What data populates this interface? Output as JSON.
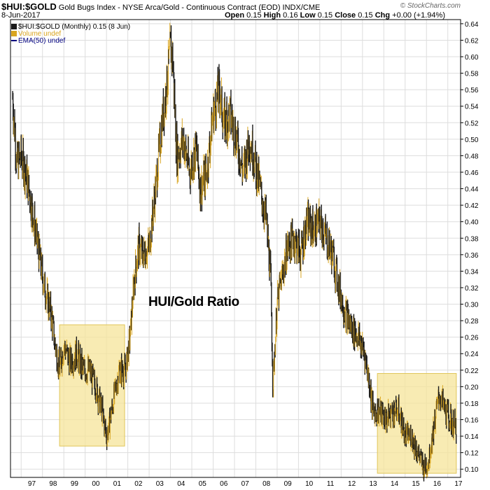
{
  "header": {
    "symbol": "$HUI:$GOLD",
    "description": "Gold Bugs Index - NYSE Arca/Gold - Continuous Contract (EOD)  INDX/CME",
    "credit": "© StockCharts.com",
    "date": "8-Jun-2017",
    "open_label": "Open",
    "open": "0.15",
    "high_label": "High",
    "high": "0.16",
    "low_label": "Low",
    "low": "0.15",
    "close_label": "Close",
    "close": "0.15",
    "chg_label": "Chg",
    "chg": "+0.00 (+1.94%)"
  },
  "legend": {
    "main": "$HUI:$GOLD (Monthly) 0.15 (8 Jun)",
    "volume": "Volume undef",
    "ema": "EMA(50) undef"
  },
  "annotation": "HUI/Gold Ratio",
  "colors": {
    "bar_dark": "#1a1a1a",
    "bar_gold": "#d9a520",
    "highlight_fill": "#f5e49a",
    "highlight_stroke": "#e0c65a",
    "grid": "#dddddd",
    "ema": "#000080"
  },
  "chart_data": {
    "type": "line",
    "title": "HUI/Gold Ratio",
    "x_ticks": [
      "97",
      "98",
      "99",
      "00",
      "01",
      "02",
      "03",
      "04",
      "05",
      "06",
      "07",
      "08",
      "09",
      "10",
      "11",
      "12",
      "13",
      "14",
      "15",
      "16",
      "17"
    ],
    "x_tick_years": [
      1997,
      1998,
      1999,
      2000,
      2001,
      2002,
      2003,
      2004,
      2005,
      2006,
      2007,
      2008,
      2009,
      2010,
      2011,
      2012,
      2013,
      2014,
      2015,
      2016,
      2017
    ],
    "y_ticks": [
      "0.10",
      "0.12",
      "0.14",
      "0.16",
      "0.18",
      "0.20",
      "0.22",
      "0.24",
      "0.26",
      "0.28",
      "0.30",
      "0.32",
      "0.34",
      "0.36",
      "0.38",
      "0.40",
      "0.42",
      "0.44",
      "0.46",
      "0.48",
      "0.50",
      "0.52",
      "0.54",
      "0.56",
      "0.58",
      "0.60",
      "0.62",
      "0.64"
    ],
    "ylim": [
      0.09,
      0.645
    ],
    "xlim": [
      1996.5,
      2017.6
    ],
    "series": [
      {
        "x": [
          1996.6,
          1996.8,
          1997.0,
          1997.3,
          1997.6,
          1997.9,
          1998.1,
          1998.4,
          1998.6,
          1998.8,
          1999.0,
          1999.3,
          1999.6,
          1999.9,
          2000.2,
          2000.5,
          2000.8,
          2001.0,
          2001.1,
          2001.3,
          2001.6,
          2001.9,
          2002.1,
          2002.3,
          2002.5,
          2002.7,
          2003.0,
          2003.3,
          2003.6,
          2003.8,
          2004.0,
          2004.1,
          2004.3,
          2004.6,
          2004.9,
          2005.2,
          2005.4,
          2005.7,
          2006.0,
          2006.3,
          2006.5,
          2006.8,
          2007.1,
          2007.4,
          2007.7,
          2007.9,
          2008.2,
          2008.5,
          2008.7,
          2008.8,
          2009.0,
          2009.2,
          2009.5,
          2009.8,
          2010.1,
          2010.4,
          2010.7,
          2011.0,
          2011.3,
          2011.6,
          2011.9,
          2012.2,
          2012.5,
          2012.8,
          2013.1,
          2013.3,
          2013.5,
          2013.8,
          2014.1,
          2014.4,
          2014.7,
          2015.0,
          2015.3,
          2015.6,
          2015.9,
          2016.1,
          2016.4,
          2016.6,
          2016.9,
          2017.1,
          2017.4
        ],
        "values": [
          0.55,
          0.47,
          0.48,
          0.45,
          0.4,
          0.35,
          0.32,
          0.29,
          0.25,
          0.22,
          0.25,
          0.23,
          0.24,
          0.22,
          0.22,
          0.2,
          0.17,
          0.14,
          0.15,
          0.18,
          0.22,
          0.22,
          0.26,
          0.33,
          0.37,
          0.36,
          0.37,
          0.44,
          0.52,
          0.56,
          0.61,
          0.6,
          0.48,
          0.5,
          0.46,
          0.49,
          0.44,
          0.46,
          0.53,
          0.56,
          0.52,
          0.53,
          0.5,
          0.46,
          0.5,
          0.48,
          0.44,
          0.4,
          0.33,
          0.2,
          0.3,
          0.33,
          0.37,
          0.38,
          0.36,
          0.4,
          0.39,
          0.4,
          0.38,
          0.36,
          0.32,
          0.29,
          0.27,
          0.26,
          0.24,
          0.21,
          0.17,
          0.17,
          0.16,
          0.17,
          0.17,
          0.14,
          0.14,
          0.12,
          0.1,
          0.11,
          0.16,
          0.19,
          0.17,
          0.16,
          0.15
        ]
      }
    ],
    "highlights": [
      {
        "x_start": 1998.8,
        "x_end": 2001.85,
        "y_low": 0.128,
        "y_high": 0.275
      },
      {
        "x_start": 2013.7,
        "x_end": 2017.4,
        "y_low": 0.095,
        "y_high": 0.216
      }
    ]
  }
}
